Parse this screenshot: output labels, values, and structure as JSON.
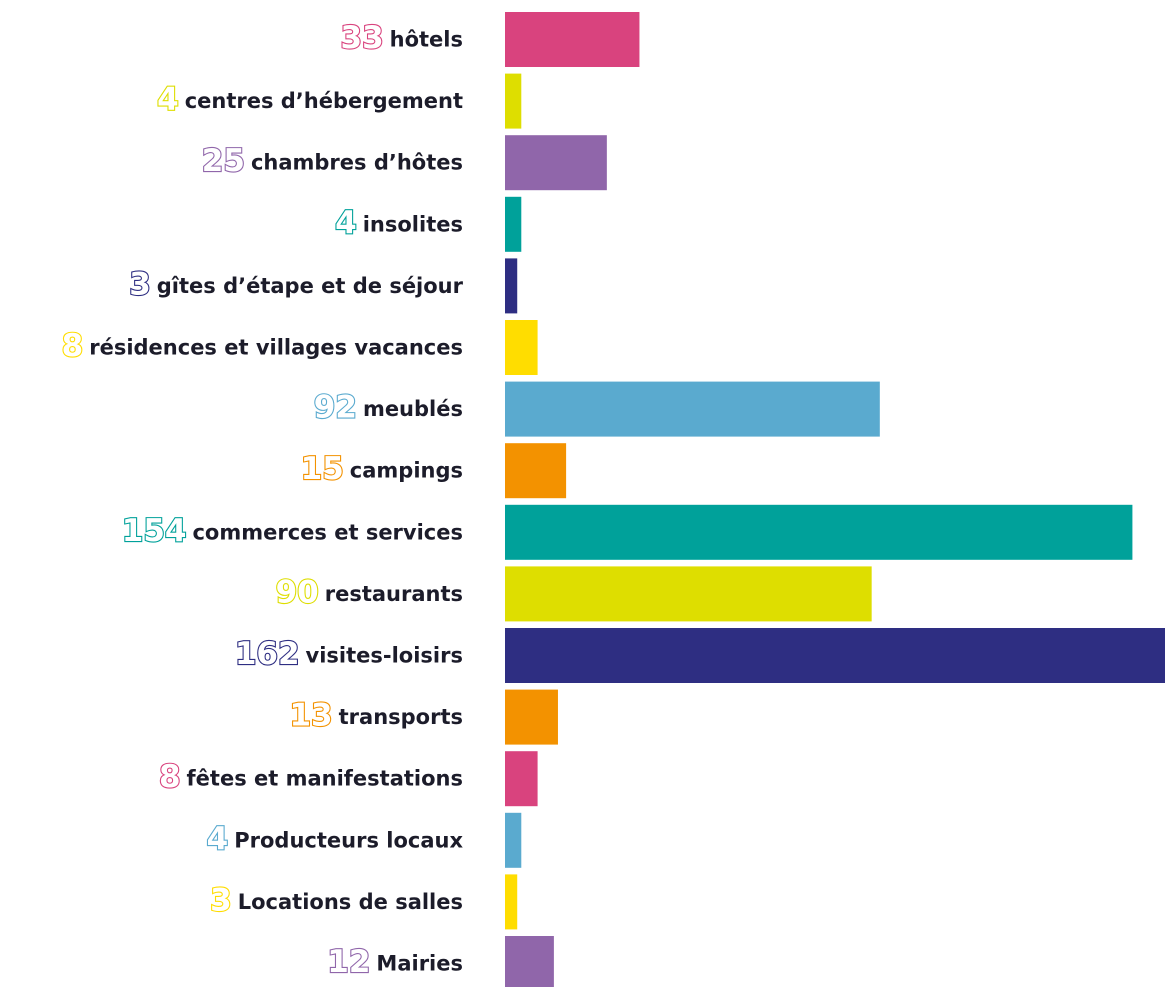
{
  "chart_data": {
    "type": "bar",
    "orientation": "horizontal",
    "categories": [
      "hôtels",
      "centres d’hébergement",
      "chambres d’hôtes",
      "insolites",
      "gîtes d’étape et de séjour",
      "résidences et villages vacances",
      "meublés",
      "campings",
      "commerces et services",
      "restaurants",
      "visites-loisirs",
      "transports",
      "fêtes et manifestations",
      "Producteurs locaux",
      "Locations de salles",
      "Mairies"
    ],
    "values": [
      33,
      4,
      25,
      4,
      3,
      8,
      92,
      15,
      154,
      90,
      162,
      13,
      8,
      4,
      3,
      12
    ],
    "colors": [
      "#d9437e",
      "#dede00",
      "#9066aa",
      "#00a19a",
      "#2e2e82",
      "#ffdd00",
      "#5aaacf",
      "#f39200",
      "#00a19a",
      "#dede00",
      "#2e2e82",
      "#f39200",
      "#d9437e",
      "#5aaacf",
      "#ffdd00",
      "#9066aa"
    ]
  }
}
